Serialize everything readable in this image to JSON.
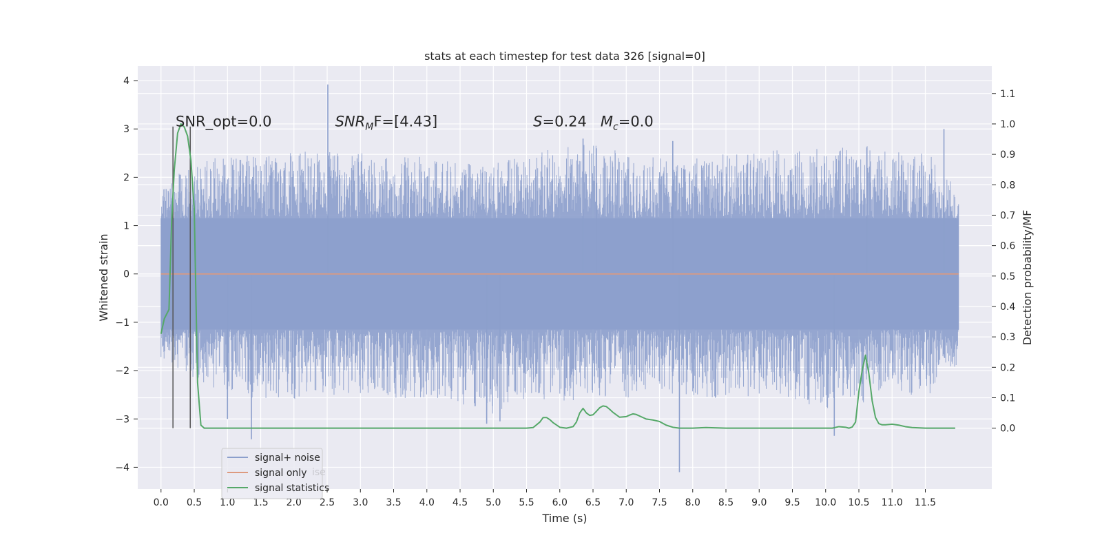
{
  "chart_data": {
    "type": "line",
    "title": "stats at each timestep for test data 326 [signal=0]",
    "xlabel": "Time (s)",
    "ylabel": "Whitened strain",
    "ylabel_right": "Detection probability/MF",
    "xlim": [
      -0.35,
      12.5
    ],
    "ylim": [
      -4.45,
      4.3
    ],
    "ylim_right": [
      -0.2,
      1.19
    ],
    "x_ticks": [
      0.0,
      0.5,
      1.0,
      1.5,
      2.0,
      2.5,
      3.0,
      3.5,
      4.0,
      4.5,
      5.0,
      5.5,
      6.0,
      6.5,
      7.0,
      7.5,
      8.0,
      8.5,
      9.0,
      9.5,
      10.0,
      10.5,
      11.0,
      11.5
    ],
    "x_tick_labels": [
      "0.0",
      "0.5",
      "1.0",
      "1.5",
      "2.0",
      "2.5",
      "3.0",
      "3.5",
      "4.0",
      "4.5",
      "5.0",
      "5.5",
      "6.0",
      "6.5",
      "7.0",
      "7.5",
      "8.0",
      "8.5",
      "9.0",
      "9.5",
      "10.0",
      "10.5",
      "11.0",
      "11.5"
    ],
    "y_ticks": [
      -4,
      -3,
      -2,
      -1,
      0,
      1,
      2,
      3,
      4
    ],
    "y_tick_labels": [
      "−4",
      "−3",
      "−2",
      "−1",
      "0",
      "1",
      "2",
      "3",
      "4"
    ],
    "y_ticks_right": [
      0.0,
      0.1,
      0.2,
      0.3,
      0.4,
      0.5,
      0.6,
      0.7,
      0.8,
      0.9,
      1.0,
      1.1
    ],
    "y_tick_labels_right": [
      "0.0",
      "0.1",
      "0.2",
      "0.3",
      "0.4",
      "0.5",
      "0.6",
      "0.7",
      "0.8",
      "0.9",
      "1.0",
      "1.1"
    ],
    "grid": true,
    "legend_position": "bottom-left",
    "series": [
      {
        "name": "signal+ noise",
        "color": "#8c9fcc",
        "axis": "left",
        "envelope": {
          "x": [
            0.0,
            0.5,
            1.0,
            1.5,
            2.0,
            2.5,
            3.0,
            3.5,
            4.0,
            4.5,
            5.0,
            5.5,
            6.0,
            6.5,
            7.0,
            7.5,
            8.0,
            8.5,
            9.0,
            9.5,
            10.0,
            10.5,
            11.0,
            11.5,
            12.0
          ],
          "upper": [
            1.7,
            2.4,
            2.4,
            2.5,
            2.5,
            2.6,
            2.5,
            2.4,
            2.5,
            2.3,
            2.3,
            2.5,
            2.6,
            2.7,
            2.5,
            2.4,
            2.4,
            2.5,
            2.6,
            2.6,
            2.6,
            2.7,
            2.5,
            2.6,
            1.7
          ],
          "lower": [
            -1.9,
            -2.2,
            -2.5,
            -2.6,
            -2.6,
            -2.5,
            -2.5,
            -2.6,
            -2.6,
            -2.7,
            -2.9,
            -2.6,
            -2.7,
            -2.5,
            -2.6,
            -2.4,
            -2.6,
            -2.6,
            -2.5,
            -2.6,
            -2.8,
            -2.7,
            -2.4,
            -2.6,
            -1.9
          ]
        },
        "spikes": [
          {
            "x": 2.51,
            "y": 3.92
          },
          {
            "x": 11.78,
            "y": 3.0
          },
          {
            "x": 6.35,
            "y": 2.8
          },
          {
            "x": 6.55,
            "y": 2.6
          },
          {
            "x": 7.7,
            "y": 2.75
          },
          {
            "x": 10.62,
            "y": 2.62
          },
          {
            "x": 1.36,
            "y": -3.42
          },
          {
            "x": 7.8,
            "y": -4.1
          },
          {
            "x": 10.13,
            "y": -3.35
          },
          {
            "x": 4.9,
            "y": -3.1
          },
          {
            "x": 1.0,
            "y": -3.0
          },
          {
            "x": 5.1,
            "y": -3.05
          }
        ]
      },
      {
        "name": "signal only",
        "color": "#dd9a7f",
        "axis": "left",
        "x": [
          0.0,
          12.0
        ],
        "y": [
          0.0,
          0.0
        ]
      },
      {
        "name": "signal statistics",
        "color": "#55a868",
        "axis": "right",
        "x": [
          0.0,
          0.05,
          0.12,
          0.16,
          0.2,
          0.25,
          0.3,
          0.35,
          0.4,
          0.45,
          0.5,
          0.55,
          0.6,
          0.65,
          0.8,
          1.0,
          2.0,
          3.0,
          4.0,
          5.0,
          5.3,
          5.5,
          5.6,
          5.7,
          5.75,
          5.8,
          5.85,
          5.9,
          6.0,
          6.1,
          6.2,
          6.25,
          6.3,
          6.35,
          6.4,
          6.45,
          6.5,
          6.55,
          6.6,
          6.65,
          6.7,
          6.75,
          6.8,
          6.9,
          7.0,
          7.05,
          7.1,
          7.15,
          7.2,
          7.3,
          7.4,
          7.5,
          7.6,
          7.7,
          7.8,
          8.0,
          8.2,
          8.5,
          9.0,
          9.5,
          10.0,
          10.1,
          10.2,
          10.3,
          10.35,
          10.4,
          10.45,
          10.5,
          10.55,
          10.6,
          10.65,
          10.7,
          10.75,
          10.8,
          10.85,
          10.9,
          11.0,
          11.1,
          11.2,
          11.3,
          11.5,
          11.8,
          11.95
        ],
        "y": [
          0.31,
          0.36,
          0.39,
          0.68,
          0.85,
          0.97,
          1.0,
          0.99,
          0.96,
          0.88,
          0.72,
          0.15,
          0.01,
          0.0,
          0.0,
          0.0,
          0.0,
          0.0,
          0.0,
          0.0,
          0.0,
          0.0,
          0.002,
          0.02,
          0.035,
          0.035,
          0.028,
          0.018,
          0.003,
          0.0,
          0.005,
          0.02,
          0.05,
          0.065,
          0.05,
          0.042,
          0.044,
          0.055,
          0.067,
          0.073,
          0.071,
          0.062,
          0.052,
          0.036,
          0.038,
          0.043,
          0.047,
          0.045,
          0.04,
          0.03,
          0.027,
          0.022,
          0.01,
          0.003,
          0.0,
          0.0,
          0.002,
          0.0,
          0.0,
          0.0,
          0.0,
          0.0,
          0.005,
          0.003,
          0.0,
          0.004,
          0.02,
          0.12,
          0.19,
          0.24,
          0.18,
          0.09,
          0.035,
          0.015,
          0.011,
          0.011,
          0.013,
          0.01,
          0.005,
          0.002,
          0.0,
          0.0,
          0.0
        ]
      }
    ],
    "vertical_markers": {
      "color": "#555555",
      "x": [
        0.18,
        0.44
      ]
    },
    "annotations": [
      {
        "id": "snr_opt",
        "text": "SNR_opt=0.0",
        "x": 0.22,
        "y": 3.05
      },
      {
        "id": "snr_mf",
        "text_main": "SNR",
        "text_sub": "M",
        "text_rest": "F=[4.43]",
        "x": 2.62,
        "y": 3.05
      },
      {
        "id": "s_mc",
        "text_s": "S",
        "text_s_val": "=0.24   ",
        "text_m": "M",
        "text_m_sub": "c",
        "text_m_val": "=0.0",
        "x": 5.6,
        "y": 3.05
      }
    ],
    "legend_ghost_text": "ise"
  }
}
